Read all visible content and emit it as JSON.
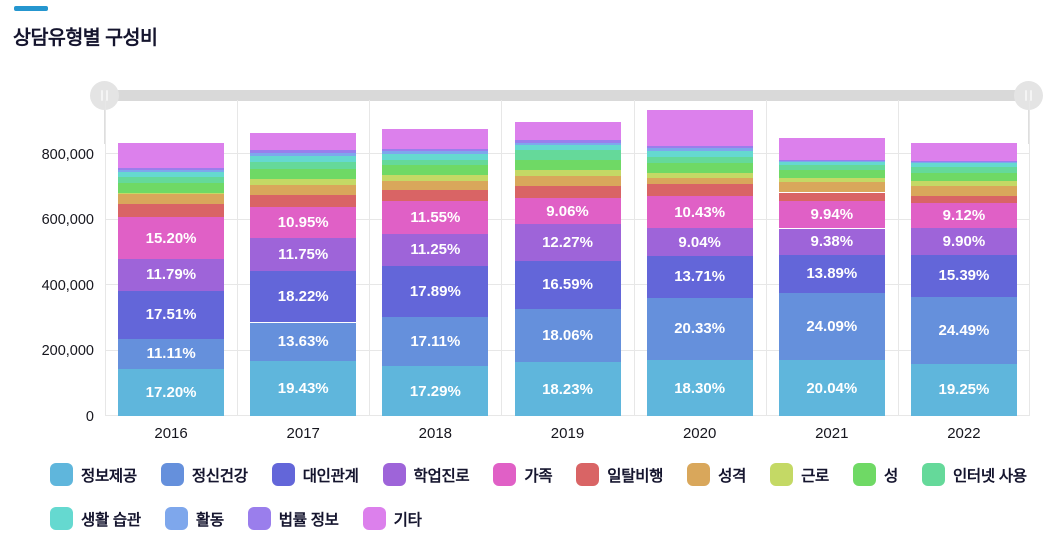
{
  "header": {
    "title": "상담유형별 구성비",
    "accent_color": "#2596cf"
  },
  "slider": {
    "track_color": "#d9d9d9",
    "handle_color": "#e4e4e4",
    "left_handle_icon": "pause-grip-icon",
    "right_handle_icon": "pause-grip-icon"
  },
  "chart_data": {
    "type": "bar",
    "stacked": true,
    "title": "상담유형별 구성비",
    "legend_position": "bottom",
    "grid": true,
    "categories": [
      "2016",
      "2017",
      "2018",
      "2019",
      "2020",
      "2021",
      "2022"
    ],
    "totals_estimated": [
      833000,
      864000,
      876000,
      898000,
      934000,
      849000,
      833000
    ],
    "y_axis": {
      "ticks": [
        0,
        200000,
        400000,
        600000,
        800000
      ],
      "tick_labels": [
        "0",
        "200,000",
        "400,000",
        "600,000",
        "800,000"
      ],
      "ylim": [
        0,
        965000
      ]
    },
    "series": [
      {
        "name": "정보제공",
        "color": "#5fb6dc",
        "values": [
          17.2,
          19.43,
          17.29,
          18.23,
          18.3,
          20.04,
          19.25
        ],
        "labels": [
          "17.20%",
          "19.43%",
          "17.29%",
          "18.23%",
          "18.30%",
          "20.04%",
          "19.25%"
        ],
        "values_estimated": false
      },
      {
        "name": "정신건강",
        "color": "#6590dc",
        "values": [
          11.11,
          13.63,
          17.11,
          18.06,
          20.33,
          24.09,
          24.49
        ],
        "labels": [
          "11.11%",
          "13.63%",
          "17.11%",
          "18.06%",
          "20.33%",
          "24.09%",
          "24.49%"
        ],
        "values_estimated": false
      },
      {
        "name": "대인관계",
        "color": "#6366d9",
        "values": [
          17.51,
          18.22,
          17.89,
          16.59,
          13.71,
          13.89,
          15.39
        ],
        "labels": [
          "17.51%",
          "18.22%",
          "17.89%",
          "16.59%",
          "13.71%",
          "13.89%",
          "15.39%"
        ],
        "values_estimated": false
      },
      {
        "name": "학업진로",
        "color": "#9e64d9",
        "values": [
          11.79,
          11.75,
          11.25,
          12.27,
          9.04,
          9.38,
          9.9
        ],
        "labels": [
          "11.79%",
          "11.75%",
          "11.25%",
          "12.27%",
          "9.04%",
          "9.38%",
          "9.90%"
        ],
        "values_estimated": false
      },
      {
        "name": "가족",
        "color": "#e060c6",
        "values": [
          15.2,
          10.95,
          11.55,
          9.06,
          10.43,
          9.94,
          9.12
        ],
        "labels": [
          "15.20%",
          "10.95%",
          "11.55%",
          "9.06%",
          "10.43%",
          "9.94%",
          "9.12%"
        ],
        "values_estimated": false
      },
      {
        "name": "일탈비행",
        "color": "#d96465",
        "values": [
          5.0,
          4.05,
          3.8,
          4.0,
          4.0,
          3.0,
          2.7
        ],
        "labels": null,
        "values_estimated": true
      },
      {
        "name": "성격",
        "color": "#d9a75b",
        "values": [
          3.5,
          3.6,
          3.1,
          3.4,
          2.0,
          3.8,
          3.6
        ],
        "labels": null,
        "values_estimated": true
      },
      {
        "name": "근로",
        "color": "#c4d965",
        "values": [
          0.6,
          2.1,
          1.9,
          2.0,
          1.6,
          1.4,
          1.6
        ],
        "labels": null,
        "values_estimated": true
      },
      {
        "name": "성",
        "color": "#6fd965",
        "values": [
          3.5,
          3.6,
          3.5,
          3.4,
          3.2,
          2.9,
          3.2
        ],
        "labels": null,
        "values_estimated": true
      },
      {
        "name": "인터넷 사용",
        "color": "#65d99a",
        "values": [
          2.1,
          2.4,
          1.8,
          3.4,
          2.1,
          1.7,
          2.1
        ],
        "labels": null,
        "values_estimated": true
      },
      {
        "name": "생활 습관",
        "color": "#65d9d0",
        "values": [
          1.9,
          2.1,
          2.0,
          1.8,
          2.1,
          1.0,
          1.5
        ],
        "labels": null,
        "values_estimated": true
      },
      {
        "name": "활동",
        "color": "#7ea7ec",
        "values": [
          0.8,
          1.1,
          1.3,
          0.8,
          0.8,
          0.4,
          0.4
        ],
        "labels": null,
        "values_estimated": true
      },
      {
        "name": "법률 정보",
        "color": "#9a7eec",
        "values": [
          0.8,
          1.0,
          0.6,
          0.9,
          0.8,
          0.4,
          0.4
        ],
        "labels": null,
        "values_estimated": true
      },
      {
        "name": "기타",
        "color": "#dc80ec",
        "values": [
          9.0,
          6.1,
          6.9,
          6.1,
          11.6,
          8.0,
          6.4
        ],
        "labels": null,
        "values_estimated": true
      }
    ],
    "legend_rows": [
      10,
      4
    ]
  }
}
